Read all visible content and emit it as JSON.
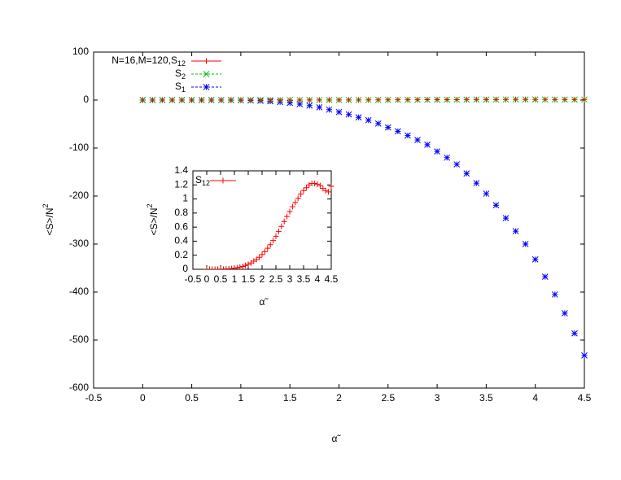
{
  "chart_data": [
    {
      "type": "scatter",
      "xlabel": "α̃",
      "ylabel": "<S>/N2",
      "xlim": [
        -0.5,
        4.5
      ],
      "ylim": [
        -600,
        100
      ],
      "xticks": [
        -0.5,
        0,
        0.5,
        1,
        1.5,
        2,
        2.5,
        3,
        3.5,
        4,
        4.5
      ],
      "yticks": [
        -600,
        -500,
        -400,
        -300,
        -200,
        -100,
        0,
        100
      ],
      "x": [
        0,
        0.1,
        0.2,
        0.3,
        0.4,
        0.5,
        0.6,
        0.7,
        0.8,
        0.9,
        1,
        1.1,
        1.2,
        1.3,
        1.4,
        1.5,
        1.6,
        1.7,
        1.8,
        1.9,
        2,
        2.1,
        2.2,
        2.3,
        2.4,
        2.5,
        2.6,
        2.7,
        2.8,
        2.9,
        3,
        3.1,
        3.2,
        3.3,
        3.4,
        3.5,
        3.6,
        3.7,
        3.8,
        3.9,
        4,
        4.1,
        4.2,
        4.3,
        4.4,
        4.5
      ],
      "series": [
        {
          "name": "N=16,M=120,S12",
          "color": "#ff0000",
          "marker": "plus",
          "values": [
            0,
            0,
            0,
            0,
            0,
            0.001,
            0.002,
            0.004,
            0.007,
            0.01,
            0.015,
            0.022,
            0.03,
            0.04,
            0.055,
            0.07,
            0.09,
            0.115,
            0.14,
            0.17,
            0.21,
            0.25,
            0.3,
            0.35,
            0.41,
            0.47,
            0.54,
            0.61,
            0.68,
            0.75,
            0.82,
            0.89,
            0.95,
            1.01,
            1.07,
            1.12,
            1.16,
            1.2,
            1.22,
            1.22,
            1.21,
            1.19,
            1.15,
            1.12,
            1.1,
            1.18
          ]
        },
        {
          "name": "S2",
          "color": "#00c000",
          "marker": "cross",
          "values": [
            0,
            0,
            0,
            0,
            0,
            0.001,
            0.002,
            0.004,
            0.007,
            0.01,
            0.015,
            0.022,
            0.03,
            0.04,
            0.055,
            0.07,
            0.09,
            0.115,
            0.14,
            0.17,
            0.21,
            0.25,
            0.3,
            0.35,
            0.41,
            0.47,
            0.54,
            0.61,
            0.68,
            0.75,
            0.82,
            0.89,
            0.95,
            1.01,
            1.07,
            1.12,
            1.16,
            1.2,
            1.22,
            1.22,
            1.21,
            1.19,
            1.15,
            1.12,
            1.1,
            1.18
          ]
        },
        {
          "name": "S1",
          "color": "#0000ff",
          "marker": "star",
          "values": [
            0,
            0,
            0,
            0,
            0,
            0,
            0,
            0,
            -0.1,
            -0.2,
            -0.4,
            -0.8,
            -1.5,
            -2.5,
            -4,
            -6,
            -8.5,
            -11.5,
            -15,
            -20,
            -25,
            -30,
            -36,
            -42,
            -49,
            -57,
            -65,
            -74,
            -83,
            -93,
            -107,
            -120,
            -134,
            -153,
            -173,
            -195,
            -219,
            -246,
            -273,
            -300,
            -332,
            -368,
            -405,
            -444,
            -486,
            -532
          ]
        }
      ]
    },
    {
      "type": "scatter",
      "xlabel": "α̃",
      "ylabel": "<S>/N2",
      "xlim": [
        -0.5,
        4.5
      ],
      "ylim": [
        0,
        1.4
      ],
      "xticks": [
        -0.5,
        0,
        0.5,
        1,
        1.5,
        2,
        2.5,
        3,
        3.5,
        4,
        4.5
      ],
      "yticks": [
        0,
        0.2,
        0.4,
        0.6,
        0.8,
        1,
        1.2,
        1.4
      ],
      "x": [
        0,
        0.1,
        0.2,
        0.3,
        0.4,
        0.5,
        0.6,
        0.7,
        0.8,
        0.9,
        1,
        1.1,
        1.2,
        1.3,
        1.4,
        1.5,
        1.6,
        1.7,
        1.8,
        1.9,
        2,
        2.1,
        2.2,
        2.3,
        2.4,
        2.5,
        2.6,
        2.7,
        2.8,
        2.9,
        3,
        3.1,
        3.2,
        3.3,
        3.4,
        3.5,
        3.6,
        3.7,
        3.8,
        3.9,
        4,
        4.1,
        4.2,
        4.3,
        4.4,
        4.5
      ],
      "series": [
        {
          "name": "S12",
          "color": "#ff0000",
          "marker": "plus",
          "values": [
            0,
            0,
            0,
            0,
            0,
            0.001,
            0.002,
            0.004,
            0.007,
            0.01,
            0.015,
            0.022,
            0.03,
            0.04,
            0.055,
            0.07,
            0.09,
            0.115,
            0.14,
            0.17,
            0.21,
            0.25,
            0.3,
            0.35,
            0.41,
            0.47,
            0.54,
            0.61,
            0.68,
            0.75,
            0.82,
            0.89,
            0.95,
            1.01,
            1.07,
            1.12,
            1.16,
            1.2,
            1.22,
            1.22,
            1.21,
            1.19,
            1.15,
            1.12,
            1.1,
            1.18
          ]
        }
      ]
    }
  ]
}
